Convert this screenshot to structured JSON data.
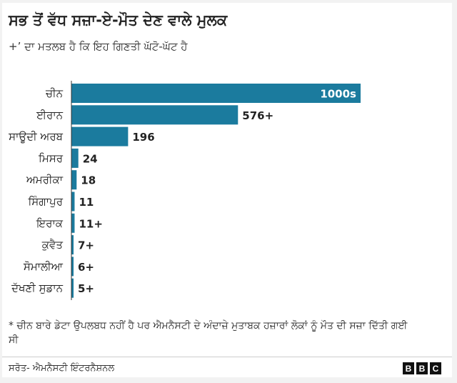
{
  "chart_data": {
    "type": "bar",
    "orientation": "horizontal",
    "title": "ਸਭ ਤੋਂ ਵੱਧ ਸਜ਼ਾ-ਏ-ਮੌਤ ਦੇਣ ਵਾਲੇ ਮੁਲਕ",
    "subtitle": "+’ ਦਾ ਮਤਲਬ ਹੈ ਕਿ ਇਹ ਗਿਣਤੀ ਘੱਟੋ-ਘੱਟ ਹੈ",
    "categories": [
      "ਚੀਨ",
      "ਈਰਾਨ",
      "ਸਾਊਦੀ ਅਰਬ",
      "ਮਿਸਰ",
      "ਅਮਰੀਕਾ",
      "ਸਿੰਗਾਪੁਰ",
      "ਇਰਾਕ",
      "ਕੁਵੈਤ",
      "ਸੋਮਾਲੀਆ",
      "ਦੱਖਣੀ ਸੁਡਾਨ"
    ],
    "values": [
      1000,
      576,
      196,
      24,
      18,
      11,
      11,
      7,
      6,
      5
    ],
    "value_labels": [
      "1000s",
      "576+",
      "196",
      "24",
      "18",
      "11",
      "11+",
      "7+",
      "6+",
      "5+"
    ],
    "bar_color": "#1b7b9e",
    "grid": false
  },
  "footnote": "* ਚੀਨ ਬਾਰੇ ਡੇਟਾ ਉਪਲਬਧ ਨਹੀਂ ਹੈ ਪਰ ਐਮਨੈਸਟੀ ਦੇ ਅੰਦਾਜ਼ੇ ਮੁਤਾਬਕ ਹਜ਼ਾਰਾਂ ਲੋਕਾਂ ਨੂੰ ਮੌਤ ਦੀ ਸਜ਼ਾ ਦਿੱਤੀ ਗਈ ਸੀ",
  "source": "ਸਰੋਤ- ਐਮਨੈਸਟੀ ਇੰਟਰਨੈਸ਼ਨਲ",
  "logo": {
    "letters": [
      "B",
      "B",
      "C"
    ]
  }
}
